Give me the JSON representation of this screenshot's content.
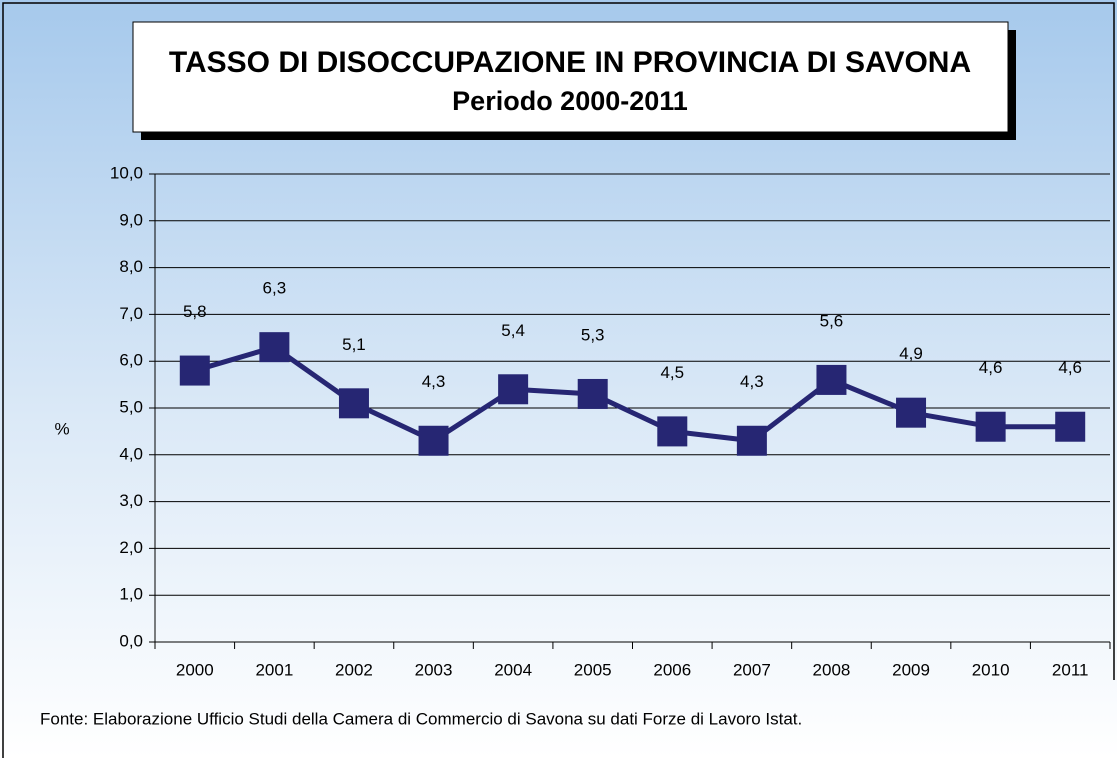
{
  "chart_data": {
    "type": "line",
    "title": "TASSO DI DISOCCUPAZIONE IN PROVINCIA DI SAVONA",
    "subtitle": "Periodo 2000-2011",
    "y_label": "%",
    "source": "Fonte: Elaborazione Ufficio Studi della Camera di Commercio di Savona su dati Forze di Lavoro Istat.",
    "categories": [
      "2000",
      "2001",
      "2002",
      "2003",
      "2004",
      "2005",
      "2006",
      "2007",
      "2008",
      "2009",
      "2010",
      "2011"
    ],
    "series": [
      {
        "color": "#262673",
        "values": [
          5.8,
          6.3,
          5.1,
          4.3,
          5.4,
          5.3,
          4.5,
          4.3,
          5.6,
          4.9,
          4.6,
          4.6
        ],
        "value_labels": [
          "5,8",
          "6,3",
          "5,1",
          "4,3",
          "5,4",
          "5,3",
          "4,5",
          "4,3",
          "5,6",
          "4,9",
          "4,6",
          "4,6"
        ]
      }
    ],
    "ylim": [
      0,
      10
    ],
    "yticks": [
      {
        "value": 0,
        "label": "0,0"
      },
      {
        "value": 1,
        "label": "1,0"
      },
      {
        "value": 2,
        "label": "2,0"
      },
      {
        "value": 3,
        "label": "3,0"
      },
      {
        "value": 4,
        "label": "4,0"
      },
      {
        "value": 5,
        "label": "5,0"
      },
      {
        "value": 6,
        "label": "6,0"
      },
      {
        "value": 7,
        "label": "7,0"
      },
      {
        "value": 8,
        "label": "8,0"
      },
      {
        "value": 9,
        "label": "9,0"
      },
      {
        "value": 10,
        "label": "10,0"
      }
    ],
    "grid": true
  }
}
